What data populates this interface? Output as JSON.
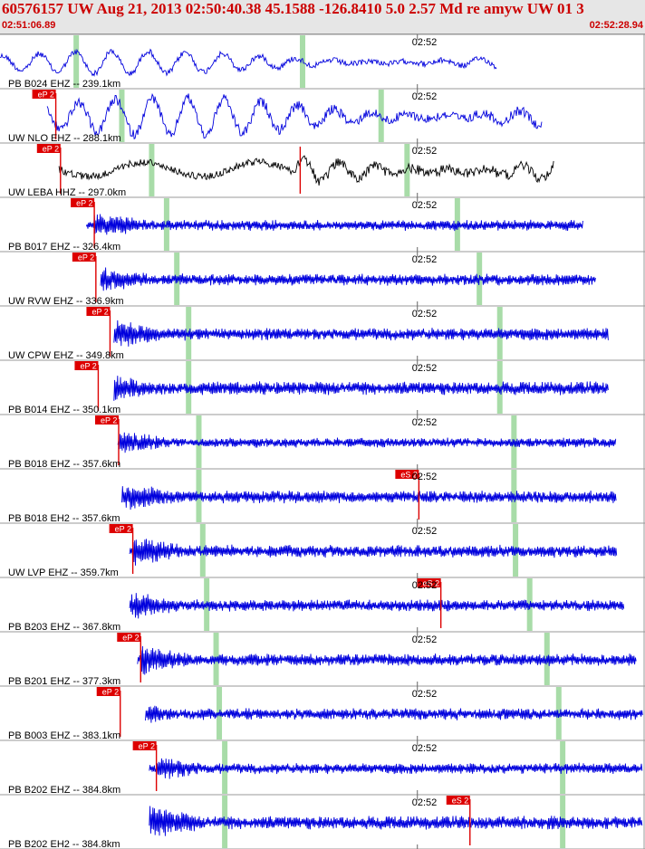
{
  "header": {
    "title": "60576157 UW Aug 21, 2013 02:50:40.38    45.1588 -126.8410  5.0 2.57 Md re amyw UW 01    3",
    "time_start": "02:51:06.89",
    "time_end": "02:52:28.94"
  },
  "colors": {
    "trace": "#0000dd",
    "trace_alt": "#000000",
    "pick": "#dd0000",
    "marker": "#a8dca8",
    "grid": "#999999",
    "header_bg": "#e6e6e6"
  },
  "chart_data": {
    "type": "line",
    "title": "60576157 UW Aug 21, 2013 02:50:40.38    45.1588 -126.8410  5.0 2.57 Md re amyw UW 01    3",
    "x_axis": {
      "start": "02:51:06.89",
      "end": "02:52:28.94",
      "tick_label": "02:52",
      "tick_seconds": 53.11
    },
    "grid": true,
    "series": [
      {
        "name": "PB B024 EHZ -- 239.1km",
        "trace_color": "black_blue",
        "start_s": 0.0,
        "end_s": 63.2,
        "amp": 0.45,
        "kind": "low",
        "p_pick": null,
        "s_pick": null,
        "markers": [
          9.7,
          38.5
        ]
      },
      {
        "name": "UW NLO EHZ -- 288.1km",
        "trace_color": "blue",
        "start_s": 6.0,
        "end_s": 69.0,
        "amp": 0.75,
        "kind": "low",
        "p_pick": 7.1,
        "p_label": "eP 2",
        "s_pick": null,
        "markers": [
          15.5,
          48.5
        ]
      },
      {
        "name": "UW LEBA HHZ -- 297.0km",
        "trace_color": "black",
        "start_s": 7.5,
        "end_s": 70.5,
        "amp": 0.8,
        "kind": "low",
        "p_pick": 7.7,
        "p_label": "eP 2",
        "s_pick": 38.2,
        "markers": [
          19.3,
          51.8
        ]
      },
      {
        "name": "PB B017 EHZ -- 326.4km",
        "trace_color": "blue",
        "start_s": 11.0,
        "end_s": 74.2,
        "amp": 0.5,
        "kind": "hf",
        "p_pick": 12.0,
        "p_label": "eP 2",
        "s_pick": null,
        "markers": [
          21.2,
          58.2
        ]
      },
      {
        "name": "UW RVW EHZ -- 336.9km",
        "trace_color": "blue",
        "start_s": 12.8,
        "end_s": 75.8,
        "amp": 0.55,
        "kind": "hf",
        "p_pick": 12.2,
        "p_label": "eP 2",
        "s_pick": null,
        "markers": [
          22.5,
          61.0
        ]
      },
      {
        "name": "UW CPW EHZ -- 349.8km",
        "trace_color": "blue",
        "start_s": 14.5,
        "end_s": 77.4,
        "amp": 0.6,
        "kind": "hf",
        "p_pick": 14.0,
        "p_label": "eP 2",
        "s_pick": null,
        "markers": [
          24.0,
          63.6
        ]
      },
      {
        "name": "PB B014 EHZ -- 350.1km",
        "trace_color": "blue",
        "start_s": 14.5,
        "end_s": 77.4,
        "amp": 0.65,
        "kind": "hf",
        "p_pick": 12.5,
        "p_label": "eP 2",
        "s_pick": null,
        "markers": [
          24.0,
          63.6
        ]
      },
      {
        "name": "PB B018 EHZ -- 357.6km",
        "trace_color": "blue",
        "start_s": 15.0,
        "end_s": 78.4,
        "amp": 0.45,
        "kind": "hf",
        "p_pick": 15.1,
        "p_label": "eP 2",
        "s_pick": null,
        "markers": [
          25.3,
          65.4
        ]
      },
      {
        "name": "PB B018 EH2 -- 357.6km",
        "trace_color": "blue",
        "start_s": 15.5,
        "end_s": 78.4,
        "amp": 0.6,
        "kind": "hf",
        "p_pick": null,
        "s_pick": 53.3,
        "s_label": "eS 2",
        "markers": [
          25.3,
          65.4
        ]
      },
      {
        "name": "UW LVP EHZ -- 359.7km",
        "trace_color": "blue",
        "start_s": 16.5,
        "end_s": 78.5,
        "amp": 0.6,
        "kind": "hf",
        "p_pick": 16.9,
        "p_label": "eP 2",
        "s_pick": null,
        "markers": [
          25.8,
          65.6
        ]
      },
      {
        "name": "PB B203 EHZ -- 367.8km",
        "trace_color": "blue",
        "start_s": 16.5,
        "end_s": 79.4,
        "amp": 0.55,
        "kind": "hf",
        "p_pick": null,
        "s_pick": 56.1,
        "s_label": "eS 2",
        "markers": [
          26.3,
          67.4
        ]
      },
      {
        "name": "PB B201 EHZ -- 377.3km",
        "trace_color": "blue",
        "start_s": 17.5,
        "end_s": 81.0,
        "amp": 0.6,
        "kind": "hf",
        "p_pick": 17.9,
        "p_label": "eP 2",
        "s_pick": null,
        "markers": [
          27.5,
          69.6
        ]
      },
      {
        "name": "PB B003 EHZ -- 383.1km",
        "trace_color": "blue",
        "start_s": 18.5,
        "end_s": 81.8,
        "amp": 0.55,
        "kind": "hf",
        "p_pick": 15.3,
        "p_label": "eP 2",
        "s_pick": null,
        "markers": [
          27.9,
          71.1
        ]
      },
      {
        "name": "PB B202 EHZ -- 384.8km",
        "trace_color": "blue",
        "start_s": 19.0,
        "end_s": 81.8,
        "amp": 0.5,
        "kind": "hf",
        "p_pick": 19.9,
        "p_label": "eP 2",
        "s_pick": null,
        "markers": [
          28.6,
          71.6
        ]
      },
      {
        "name": "PB B202 EH2 -- 384.8km",
        "trace_color": "blue",
        "start_s": 19.0,
        "end_s": 81.8,
        "amp": 0.65,
        "kind": "hf",
        "p_pick": null,
        "s_pick": 59.8,
        "s_label": "eS 2",
        "markers": [
          28.6,
          71.6
        ]
      }
    ]
  }
}
